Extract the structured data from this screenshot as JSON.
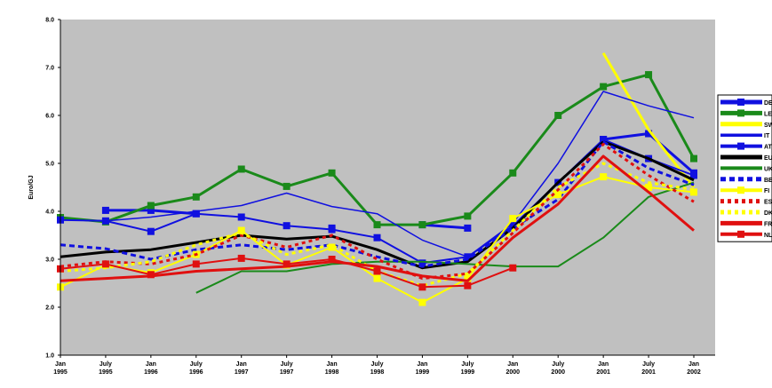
{
  "chart_data": {
    "type": "line",
    "title": "",
    "xlabel": "",
    "ylabel": "Euro/GJ",
    "ylim": [
      1.0,
      8.0
    ],
    "yticks": [
      "1.0",
      "2.0",
      "3.0",
      "4.0",
      "5.0",
      "6.0",
      "7.0",
      "8.0"
    ],
    "categories": [
      [
        "Jan",
        "1995"
      ],
      [
        "July",
        "1995"
      ],
      [
        "Jan",
        "1996"
      ],
      [
        "July",
        "1996"
      ],
      [
        "Jan",
        "1997"
      ],
      [
        "July",
        "1997"
      ],
      [
        "Jan",
        "1998"
      ],
      [
        "July",
        "1998"
      ],
      [
        "Jan",
        "1999"
      ],
      [
        "July",
        "1999"
      ],
      [
        "Jan",
        "2000"
      ],
      [
        "July",
        "2000"
      ],
      [
        "Jan",
        "2001"
      ],
      [
        "July",
        "2001"
      ],
      [
        "Jan",
        "2002"
      ]
    ],
    "grid": false,
    "legend_position": "right",
    "background": "#c0c0c0",
    "series": [
      {
        "name": "DE",
        "color": "#1010e0",
        "width": 3,
        "dash": "",
        "marker": "square",
        "values": [
          null,
          4.02,
          4.02,
          3.95,
          null,
          null,
          3.65,
          null,
          3.72,
          3.65,
          null,
          null,
          5.5,
          5.62,
          4.8
        ]
      },
      {
        "name": "LE",
        "color": "#1a8a1a",
        "width": 3,
        "dash": "",
        "marker": "square",
        "values": [
          3.87,
          3.78,
          4.12,
          4.3,
          4.88,
          4.52,
          4.8,
          3.72,
          3.72,
          3.9,
          4.8,
          6.0,
          6.6,
          6.85,
          5.1
        ]
      },
      {
        "name": "SW",
        "color": "#ffff00",
        "width": 3,
        "dash": "",
        "marker": "",
        "values": [
          null,
          null,
          null,
          null,
          null,
          null,
          null,
          null,
          null,
          null,
          null,
          null,
          7.3,
          5.7,
          4.5
        ]
      },
      {
        "name": "IT",
        "color": "#1010e0",
        "width": 1.5,
        "dash": "",
        "marker": "",
        "values": [
          3.82,
          3.8,
          3.88,
          4.0,
          4.12,
          4.38,
          4.1,
          3.95,
          3.4,
          3.05,
          3.75,
          5.0,
          6.5,
          6.2,
          5.95
        ]
      },
      {
        "name": "AT",
        "color": "#1010e0",
        "width": 2,
        "dash": "",
        "marker": "square",
        "values": [
          3.82,
          3.8,
          3.58,
          3.95,
          3.88,
          3.7,
          3.62,
          3.45,
          2.92,
          3.05,
          3.7,
          4.6,
          5.5,
          5.1,
          4.75
        ]
      },
      {
        "name": "EU",
        "color": "#000000",
        "width": 3,
        "dash": "",
        "marker": "",
        "values": [
          3.05,
          3.15,
          3.2,
          3.35,
          3.5,
          3.42,
          3.48,
          3.2,
          2.82,
          2.95,
          3.65,
          4.6,
          5.45,
          5.1,
          4.65
        ]
      },
      {
        "name": "UK",
        "color": "#1a8a1a",
        "width": 2,
        "dash": "",
        "marker": "",
        "values": [
          null,
          null,
          null,
          2.3,
          2.75,
          2.75,
          2.9,
          2.95,
          2.95,
          2.9,
          2.85,
          2.85,
          3.45,
          4.3,
          4.6
        ]
      },
      {
        "name": "BE",
        "color": "#1010e0",
        "width": 3,
        "dash": "6,4",
        "marker": "",
        "values": [
          3.3,
          3.22,
          3.0,
          3.2,
          3.3,
          3.2,
          3.3,
          3.05,
          2.85,
          3.0,
          3.65,
          4.25,
          5.45,
          4.9,
          4.55
        ]
      },
      {
        "name": "FI",
        "color": "#ffff00",
        "width": 2,
        "dash": "",
        "marker": "square",
        "values": [
          2.42,
          2.88,
          2.72,
          3.1,
          3.6,
          2.88,
          3.25,
          2.6,
          2.1,
          2.6,
          3.85,
          4.35,
          4.72,
          4.5,
          4.4
        ]
      },
      {
        "name": "ES",
        "color": "#e01010",
        "width": 3,
        "dash": "4,4",
        "marker": "",
        "values": [
          2.85,
          2.95,
          2.9,
          3.1,
          3.5,
          3.25,
          3.5,
          3.0,
          2.6,
          2.7,
          3.55,
          4.45,
          5.4,
          4.75,
          4.2
        ]
      },
      {
        "name": "DK",
        "color": "#ffff00",
        "width": 3,
        "dash": "4,4",
        "marker": "",
        "values": [
          2.75,
          2.82,
          2.95,
          3.3,
          3.55,
          3.1,
          3.3,
          2.75,
          2.45,
          2.7,
          3.6,
          4.5,
          5.0,
          4.6,
          4.45
        ]
      },
      {
        "name": "FR",
        "color": "#e01010",
        "width": 3,
        "dash": "",
        "marker": "",
        "values": [
          2.55,
          2.6,
          2.65,
          2.75,
          2.8,
          2.85,
          2.95,
          2.85,
          2.65,
          2.55,
          3.45,
          4.15,
          5.15,
          4.4,
          3.6
        ]
      },
      {
        "name": "NL",
        "color": "#e01010",
        "width": 2,
        "dash": "",
        "marker": "square",
        "values": [
          2.8,
          2.9,
          2.68,
          2.9,
          3.02,
          2.9,
          3.0,
          2.75,
          2.42,
          2.45,
          2.82,
          null,
          null,
          null,
          null
        ]
      }
    ]
  }
}
